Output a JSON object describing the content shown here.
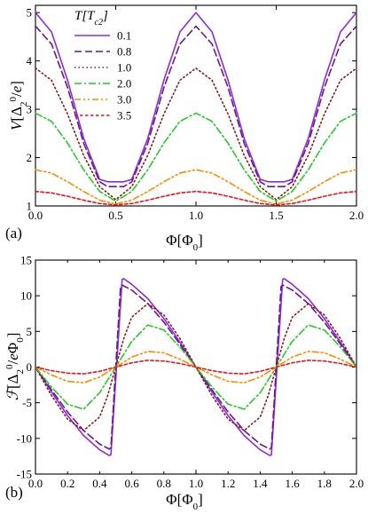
{
  "chart_data": [
    {
      "type": "line",
      "panel_label": "(a)",
      "xlabel": "Φ[Φ0]",
      "ylabel": "V[Δ2⁰/e]",
      "xlim": [
        0,
        2
      ],
      "ylim": [
        1,
        5.15
      ],
      "xticks": [
        "0.0",
        "0.5",
        "1.0",
        "1.5",
        "2.0"
      ],
      "yticks": [
        "1",
        "2",
        "3",
        "4",
        "5"
      ],
      "grid": false,
      "legend": {
        "title": "T[Tc2]",
        "placement": "top-left"
      },
      "series": [
        {
          "name": "0.1",
          "color": "#8a2be2",
          "style": "solid",
          "x": [
            0.0,
            0.1,
            0.2,
            0.3,
            0.4,
            0.45,
            0.55,
            0.6,
            0.7,
            0.8,
            0.9,
            1.0,
            1.1,
            1.2,
            1.3,
            1.4,
            1.45,
            1.55,
            1.6,
            1.7,
            1.8,
            1.9,
            2.0
          ],
          "y": [
            5.0,
            4.6,
            3.6,
            2.4,
            1.55,
            1.5,
            1.5,
            1.55,
            2.4,
            3.6,
            4.6,
            5.0,
            4.6,
            3.6,
            2.4,
            1.55,
            1.5,
            1.5,
            1.55,
            2.4,
            3.6,
            4.6,
            5.0
          ]
        },
        {
          "name": "0.8",
          "color": "#70158a",
          "style": "dashed",
          "x": [
            0.0,
            0.1,
            0.2,
            0.3,
            0.4,
            0.45,
            0.55,
            0.6,
            0.7,
            0.8,
            0.9,
            1.0,
            1.1,
            1.2,
            1.3,
            1.4,
            1.45,
            1.55,
            1.6,
            1.7,
            1.8,
            1.9,
            2.0
          ],
          "y": [
            4.72,
            4.35,
            3.45,
            2.3,
            1.5,
            1.4,
            1.4,
            1.5,
            2.3,
            3.45,
            4.35,
            4.72,
            4.35,
            3.45,
            2.3,
            1.5,
            1.4,
            1.4,
            1.5,
            2.3,
            3.45,
            4.35,
            4.72
          ]
        },
        {
          "name": "1.0",
          "color": "#8b1a1a",
          "style": "dotted",
          "x": [
            0.0,
            0.1,
            0.2,
            0.3,
            0.4,
            0.5,
            0.6,
            0.7,
            0.8,
            0.9,
            1.0,
            1.1,
            1.2,
            1.3,
            1.4,
            1.5,
            1.6,
            1.7,
            1.8,
            1.9,
            2.0
          ],
          "y": [
            3.85,
            3.6,
            2.9,
            2.05,
            1.4,
            1.13,
            1.4,
            2.05,
            2.9,
            3.6,
            3.85,
            3.6,
            2.9,
            2.05,
            1.4,
            1.13,
            1.4,
            2.05,
            2.9,
            3.6,
            3.85
          ]
        },
        {
          "name": "2.0",
          "color": "#22cc22",
          "style": "dashdot",
          "x": [
            0.0,
            0.1,
            0.2,
            0.3,
            0.4,
            0.5,
            0.6,
            0.7,
            0.8,
            0.9,
            1.0,
            1.1,
            1.2,
            1.3,
            1.4,
            1.5,
            1.6,
            1.7,
            1.8,
            1.9,
            2.0
          ],
          "y": [
            2.92,
            2.75,
            2.3,
            1.75,
            1.3,
            1.1,
            1.3,
            1.75,
            2.3,
            2.75,
            2.92,
            2.75,
            2.3,
            1.75,
            1.3,
            1.1,
            1.3,
            1.75,
            2.3,
            2.75,
            2.92
          ]
        },
        {
          "name": "3.0",
          "color": "#ff8c00",
          "style": "dashdotdot",
          "x": [
            0.0,
            0.1,
            0.2,
            0.3,
            0.4,
            0.5,
            0.6,
            0.7,
            0.8,
            0.9,
            1.0,
            1.1,
            1.2,
            1.3,
            1.4,
            1.5,
            1.6,
            1.7,
            1.8,
            1.9,
            2.0
          ],
          "y": [
            1.75,
            1.68,
            1.5,
            1.3,
            1.12,
            1.04,
            1.12,
            1.3,
            1.5,
            1.68,
            1.75,
            1.68,
            1.5,
            1.3,
            1.12,
            1.04,
            1.12,
            1.3,
            1.5,
            1.68,
            1.75
          ]
        },
        {
          "name": "3.5",
          "color": "#e8141e",
          "style": "shortdash",
          "x": [
            0.0,
            0.1,
            0.2,
            0.3,
            0.4,
            0.5,
            0.6,
            0.7,
            0.8,
            0.9,
            1.0,
            1.1,
            1.2,
            1.3,
            1.4,
            1.5,
            1.6,
            1.7,
            1.8,
            1.9,
            2.0
          ],
          "y": [
            1.3,
            1.27,
            1.2,
            1.12,
            1.05,
            1.02,
            1.05,
            1.12,
            1.2,
            1.27,
            1.3,
            1.27,
            1.2,
            1.12,
            1.05,
            1.02,
            1.05,
            1.12,
            1.2,
            1.27,
            1.3
          ]
        }
      ]
    },
    {
      "type": "line",
      "panel_label": "(b)",
      "xlabel": "Φ[Φ0]",
      "ylabel": "ℱ[Δ2⁰/eΦ0]",
      "xlim": [
        0,
        2
      ],
      "ylim": [
        -15,
        15
      ],
      "xticks": [
        "0.0",
        "0.2",
        "0.4",
        "0.6",
        "0.8",
        "1.0",
        "1.2",
        "1.4",
        "1.6",
        "1.8",
        "2.0"
      ],
      "yticks": [
        "-15",
        "-10",
        "-5",
        "0",
        "5",
        "10",
        "15"
      ],
      "grid": false,
      "series": [
        {
          "name": "0.1",
          "color": "#8a2be2",
          "style": "solid",
          "x": [
            0.0,
            0.1,
            0.2,
            0.3,
            0.4,
            0.46,
            0.47,
            0.54,
            0.55,
            0.6,
            0.7,
            0.8,
            0.9,
            1.0,
            1.1,
            1.2,
            1.3,
            1.4,
            1.46,
            1.47,
            1.54,
            1.55,
            1.6,
            1.7,
            1.8,
            1.9,
            2.0
          ],
          "y": [
            0.0,
            -3.5,
            -6.8,
            -9.6,
            -11.6,
            -12.4,
            -12.3,
            12.3,
            12.4,
            11.6,
            9.6,
            6.8,
            3.5,
            0.0,
            -3.5,
            -6.8,
            -9.6,
            -11.6,
            -12.4,
            -12.3,
            12.3,
            12.4,
            11.6,
            9.6,
            6.8,
            3.5,
            0.0
          ]
        },
        {
          "name": "0.8",
          "color": "#70158a",
          "style": "dashed",
          "x": [
            0.0,
            0.1,
            0.2,
            0.3,
            0.4,
            0.46,
            0.47,
            0.53,
            0.54,
            0.6,
            0.7,
            0.8,
            0.9,
            1.0,
            1.1,
            1.2,
            1.3,
            1.4,
            1.46,
            1.47,
            1.53,
            1.54,
            1.6,
            1.7,
            1.8,
            1.9,
            2.0
          ],
          "y": [
            0.0,
            -3.2,
            -6.3,
            -8.9,
            -10.8,
            -11.5,
            -11.3,
            11.3,
            11.5,
            10.8,
            8.9,
            6.3,
            3.2,
            0.0,
            -3.2,
            -6.3,
            -8.9,
            -10.8,
            -11.5,
            -11.3,
            11.3,
            11.5,
            10.8,
            8.9,
            6.3,
            3.2,
            0.0
          ]
        },
        {
          "name": "1.0",
          "color": "#8b1a1a",
          "style": "dotted",
          "x": [
            0.0,
            0.1,
            0.2,
            0.3,
            0.4,
            0.45,
            0.5,
            0.55,
            0.6,
            0.7,
            0.8,
            0.9,
            1.0,
            1.1,
            1.2,
            1.3,
            1.4,
            1.45,
            1.5,
            1.55,
            1.6,
            1.7,
            1.8,
            1.9,
            2.0
          ],
          "y": [
            0.0,
            -4.0,
            -7.3,
            -8.9,
            -7.0,
            -4.0,
            0.0,
            4.0,
            7.0,
            8.9,
            7.3,
            4.0,
            0.0,
            -4.0,
            -7.3,
            -8.9,
            -7.0,
            -4.0,
            0.0,
            4.0,
            7.0,
            8.9,
            7.3,
            4.0,
            0.0
          ]
        },
        {
          "name": "2.0",
          "color": "#22cc22",
          "style": "dashdot",
          "x": [
            0.0,
            0.1,
            0.2,
            0.3,
            0.4,
            0.5,
            0.6,
            0.7,
            0.8,
            0.9,
            1.0,
            1.1,
            1.2,
            1.3,
            1.4,
            1.5,
            1.6,
            1.7,
            1.8,
            1.9,
            2.0
          ],
          "y": [
            0.0,
            -2.8,
            -5.2,
            -5.9,
            -3.6,
            0.0,
            3.6,
            5.9,
            5.2,
            2.8,
            0.0,
            -2.8,
            -5.2,
            -5.9,
            -3.6,
            0.0,
            3.6,
            5.9,
            5.2,
            2.8,
            0.0
          ]
        },
        {
          "name": "3.0",
          "color": "#ff8c00",
          "style": "dashdotdot",
          "x": [
            0.0,
            0.1,
            0.2,
            0.3,
            0.4,
            0.5,
            0.6,
            0.7,
            0.8,
            0.9,
            1.0,
            1.1,
            1.2,
            1.3,
            1.4,
            1.5,
            1.6,
            1.7,
            1.8,
            1.9,
            2.0
          ],
          "y": [
            0.0,
            -1.1,
            -2.0,
            -2.2,
            -1.4,
            0.0,
            1.4,
            2.2,
            2.0,
            1.1,
            0.0,
            -1.1,
            -2.0,
            -2.2,
            -1.4,
            0.0,
            1.4,
            2.2,
            2.0,
            1.1,
            0.0
          ]
        },
        {
          "name": "3.5",
          "color": "#e8141e",
          "style": "shortdash",
          "x": [
            0.0,
            0.1,
            0.2,
            0.3,
            0.4,
            0.5,
            0.6,
            0.7,
            0.8,
            0.9,
            1.0,
            1.1,
            1.2,
            1.3,
            1.4,
            1.5,
            1.6,
            1.7,
            1.8,
            1.9,
            2.0
          ],
          "y": [
            0.0,
            -0.5,
            -0.85,
            -0.95,
            -0.6,
            0.0,
            0.6,
            0.95,
            0.85,
            0.5,
            0.0,
            -0.5,
            -0.85,
            -0.95,
            -0.6,
            0.0,
            0.6,
            0.95,
            0.85,
            0.5,
            0.0
          ]
        }
      ]
    }
  ]
}
